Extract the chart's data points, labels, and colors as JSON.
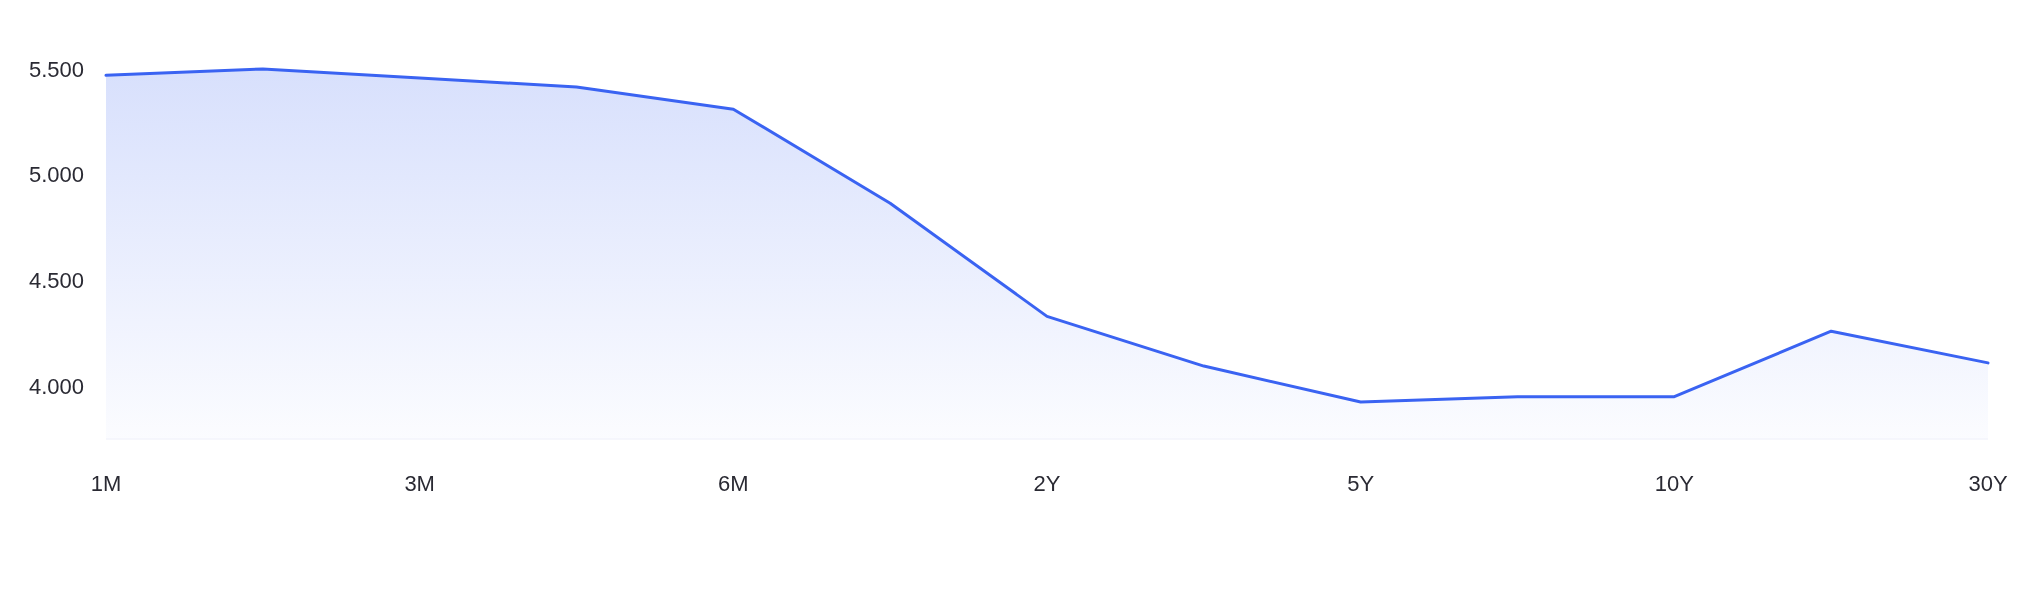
{
  "chart_data": {
    "type": "area",
    "categories": [
      "1M",
      null,
      "3M",
      null,
      "6M",
      null,
      "2Y",
      null,
      "5Y",
      null,
      "10Y",
      null,
      "30Y"
    ],
    "series": [
      {
        "color": "#3a63f2",
        "values": [
          5.47,
          5.5,
          5.457,
          5.415,
          5.31,
          4.865,
          4.33,
          4.095,
          3.925,
          3.95,
          3.95,
          4.26,
          4.11
        ]
      }
    ],
    "ylim": [
      3.75,
      5.5
    ],
    "yticks": [
      {
        "value": 4,
        "label": "4.000"
      },
      {
        "value": 4.5,
        "label": "4.500"
      },
      {
        "value": 5,
        "label": "5.000"
      },
      {
        "value": 5.5,
        "label": "5.500"
      }
    ],
    "grid": false
  }
}
